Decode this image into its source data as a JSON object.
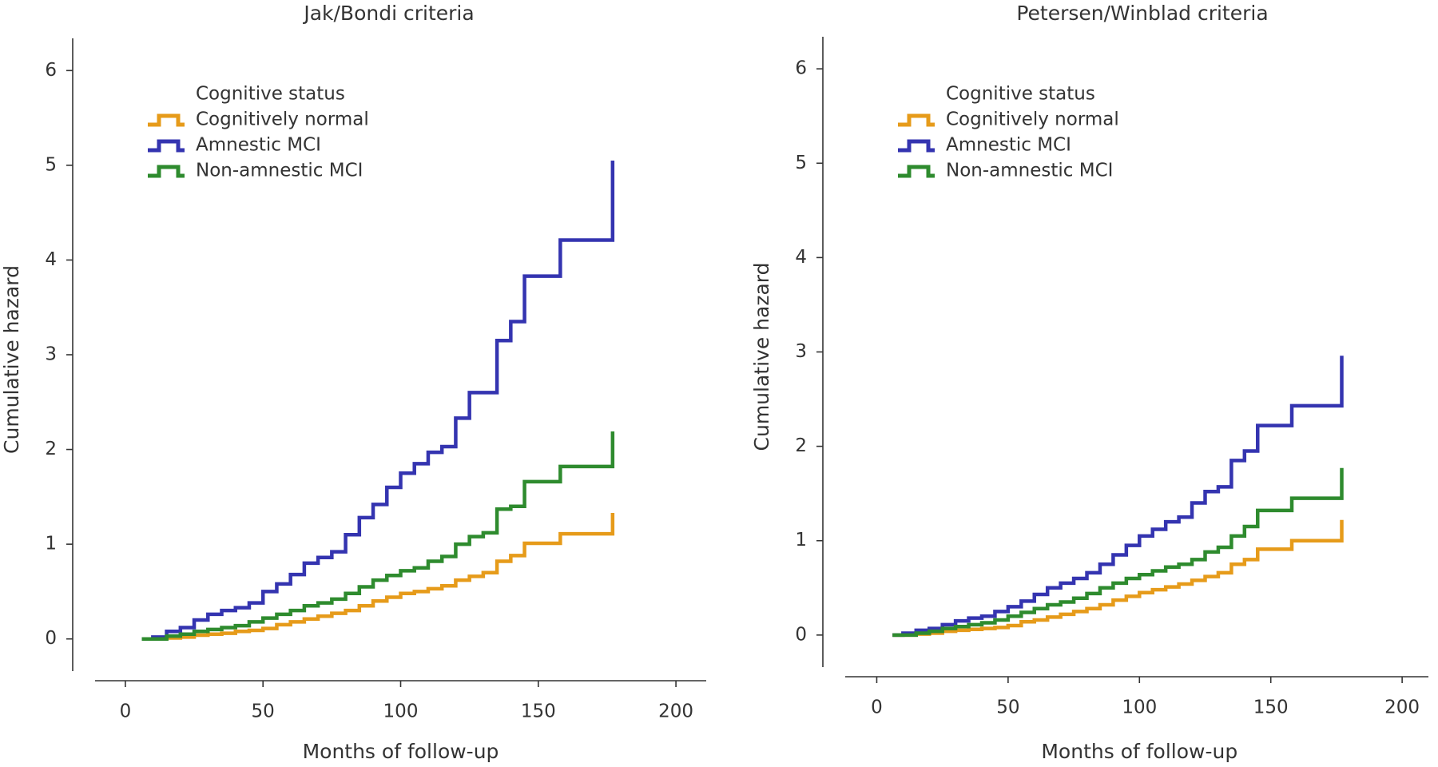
{
  "chart_data": [
    {
      "type": "line",
      "step": true,
      "title": "Jak/Bondi criteria",
      "x_label": "Months of follow-up",
      "y_label": "Cumulative hazard",
      "legend_title": "Cognitive status",
      "x": [
        6,
        10,
        15,
        20,
        25,
        30,
        35,
        40,
        45,
        50,
        55,
        60,
        65,
        70,
        75,
        80,
        85,
        90,
        95,
        100,
        105,
        110,
        115,
        120,
        125,
        130,
        135,
        140,
        145,
        158,
        177
      ],
      "series": [
        {
          "name": "Cognitively normal",
          "color": "#e69b1a",
          "values": [
            0,
            0,
            0.01,
            0.02,
            0.04,
            0.05,
            0.06,
            0.08,
            0.09,
            0.11,
            0.15,
            0.18,
            0.21,
            0.24,
            0.27,
            0.3,
            0.35,
            0.4,
            0.44,
            0.48,
            0.5,
            0.53,
            0.56,
            0.62,
            0.66,
            0.7,
            0.82,
            0.88,
            1.01,
            1.11,
            1.33
          ]
        },
        {
          "name": "Amnestic MCI",
          "color": "#3434b0",
          "values": [
            0,
            0.02,
            0.08,
            0.12,
            0.2,
            0.26,
            0.3,
            0.33,
            0.38,
            0.5,
            0.58,
            0.68,
            0.8,
            0.86,
            0.92,
            1.1,
            1.28,
            1.42,
            1.6,
            1.75,
            1.85,
            1.97,
            2.03,
            2.33,
            2.6,
            2.6,
            3.15,
            3.35,
            3.83,
            4.21,
            5.05
          ]
        },
        {
          "name": "Non-amnestic MCI",
          "color": "#2e8b2e",
          "values": [
            0,
            0,
            0.03,
            0.05,
            0.08,
            0.1,
            0.12,
            0.14,
            0.18,
            0.22,
            0.26,
            0.3,
            0.35,
            0.38,
            0.42,
            0.48,
            0.55,
            0.62,
            0.67,
            0.72,
            0.75,
            0.82,
            0.87,
            1.0,
            1.08,
            1.12,
            1.37,
            1.4,
            1.66,
            1.82,
            2.19
          ]
        }
      ],
      "xlim": [
        -11,
        211
      ],
      "xticks": [
        0,
        50,
        100,
        150,
        200
      ],
      "ylim": [
        -0.34,
        6.34
      ],
      "yticks": [
        0,
        1,
        2,
        3,
        4,
        5,
        6
      ]
    },
    {
      "type": "line",
      "step": true,
      "title": "Petersen/Winblad criteria",
      "x_label": "Months of follow-up",
      "y_label": "Cumulative hazard",
      "legend_title": "Cognitive status",
      "x": [
        6,
        10,
        15,
        20,
        25,
        30,
        35,
        40,
        45,
        50,
        55,
        60,
        65,
        70,
        75,
        80,
        85,
        90,
        95,
        100,
        105,
        110,
        115,
        120,
        125,
        130,
        135,
        140,
        145,
        158,
        177
      ],
      "series": [
        {
          "name": "Cognitively normal",
          "color": "#e69b1a",
          "values": [
            0,
            0,
            0.01,
            0.02,
            0.04,
            0.05,
            0.06,
            0.07,
            0.08,
            0.1,
            0.14,
            0.16,
            0.19,
            0.22,
            0.25,
            0.28,
            0.32,
            0.37,
            0.41,
            0.45,
            0.48,
            0.51,
            0.54,
            0.58,
            0.62,
            0.66,
            0.75,
            0.8,
            0.91,
            1.0,
            1.22
          ]
        },
        {
          "name": "Amnestic MCI",
          "color": "#3434b0",
          "values": [
            0,
            0.02,
            0.05,
            0.07,
            0.11,
            0.15,
            0.18,
            0.2,
            0.25,
            0.3,
            0.36,
            0.43,
            0.5,
            0.55,
            0.6,
            0.66,
            0.75,
            0.85,
            0.95,
            1.05,
            1.12,
            1.2,
            1.25,
            1.4,
            1.52,
            1.57,
            1.85,
            1.95,
            2.22,
            2.43,
            2.96
          ]
        },
        {
          "name": "Non-amnestic MCI",
          "color": "#2e8b2e",
          "values": [
            0,
            0,
            0.02,
            0.04,
            0.07,
            0.09,
            0.11,
            0.13,
            0.16,
            0.2,
            0.24,
            0.28,
            0.32,
            0.35,
            0.39,
            0.44,
            0.5,
            0.55,
            0.6,
            0.64,
            0.68,
            0.72,
            0.75,
            0.8,
            0.88,
            0.93,
            1.05,
            1.15,
            1.32,
            1.45,
            1.77
          ]
        }
      ],
      "xlim": [
        -12,
        210
      ],
      "xticks": [
        0,
        50,
        100,
        150,
        200
      ],
      "ylim": [
        -0.34,
        6.34
      ],
      "yticks": [
        0,
        1,
        2,
        3,
        4,
        5,
        6
      ]
    }
  ]
}
